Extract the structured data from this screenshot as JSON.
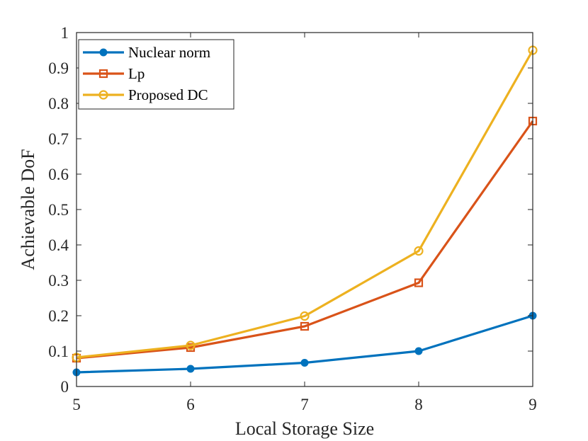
{
  "chart_data": {
    "type": "line",
    "title": "",
    "xlabel": "Local Storage Size",
    "ylabel": "Achievable DoF",
    "xlim": [
      5,
      9
    ],
    "ylim": [
      0,
      1
    ],
    "grid": false,
    "legend_position": "top-left",
    "x": [
      5,
      6,
      7,
      8,
      9
    ],
    "x_tick_labels": [
      "5",
      "6",
      "7",
      "8",
      "9"
    ],
    "y_ticks": [
      0,
      0.1,
      0.2,
      0.3,
      0.4,
      0.5,
      0.6,
      0.7,
      0.8,
      0.9,
      1
    ],
    "y_tick_labels": [
      "0",
      "0.1",
      "0.2",
      "0.3",
      "0.4",
      "0.5",
      "0.6",
      "0.7",
      "0.8",
      "0.9",
      "1"
    ],
    "series": [
      {
        "name": "Nuclear norm",
        "marker": "circle-filled",
        "color": "#0072BD",
        "values": [
          0.04,
          0.05,
          0.067,
          0.1,
          0.2
        ]
      },
      {
        "name": "Lp",
        "marker": "square-open",
        "color": "#D95319",
        "values": [
          0.08,
          0.11,
          0.17,
          0.293,
          0.75
        ]
      },
      {
        "name": "Proposed DC",
        "marker": "circle-open",
        "color": "#EDB120",
        "values": [
          0.082,
          0.116,
          0.199,
          0.383,
          0.95
        ]
      }
    ]
  }
}
